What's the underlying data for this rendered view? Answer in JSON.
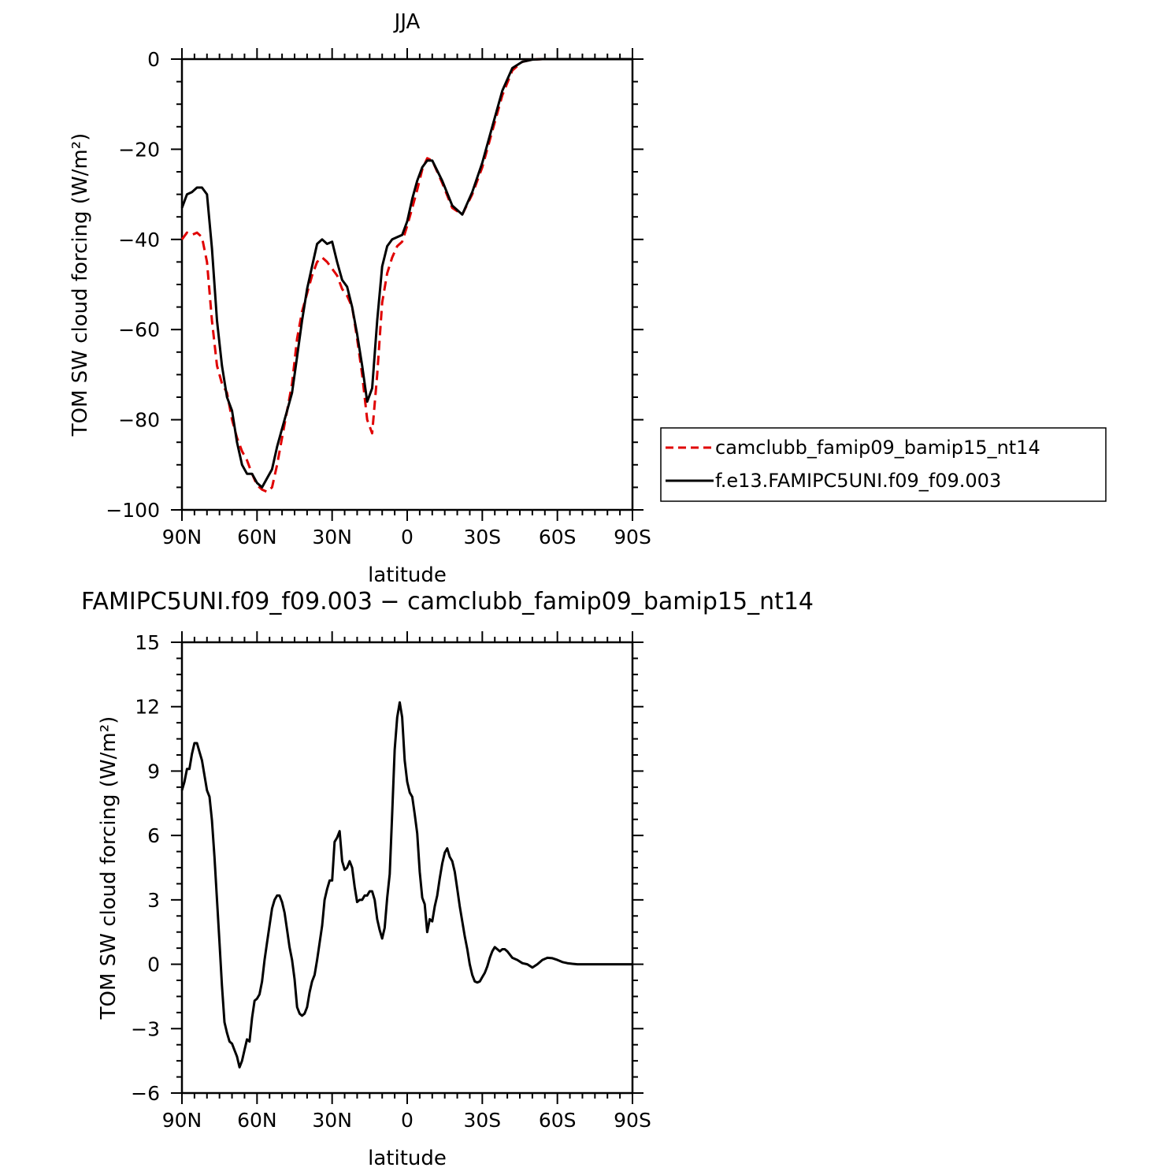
{
  "chart_data": [
    {
      "type": "line",
      "title": "JJA",
      "xlabel": "latitude",
      "ylabel": "TOM SW cloud forcing (W/m²)",
      "xlim": [
        90,
        -90
      ],
      "ylim": [
        -100,
        0
      ],
      "xticks": [
        {
          "v": 90,
          "label": "90N"
        },
        {
          "v": 60,
          "label": "60N"
        },
        {
          "v": 30,
          "label": "30N"
        },
        {
          "v": 0,
          "label": "0"
        },
        {
          "v": -30,
          "label": "30S"
        },
        {
          "v": -60,
          "label": "60S"
        },
        {
          "v": -90,
          "label": "90S"
        }
      ],
      "yticks": [
        {
          "v": 0,
          "label": "0"
        },
        {
          "v": -20,
          "label": "−20"
        },
        {
          "v": -40,
          "label": "−40"
        },
        {
          "v": -60,
          "label": "−60"
        },
        {
          "v": -80,
          "label": "−80"
        },
        {
          "v": -100,
          "label": "−100"
        }
      ],
      "legend_position": "right",
      "series": [
        {
          "name": "camclubb_famip09_bamip15_nt14",
          "color": "#e00000",
          "dash": true,
          "x": [
            90,
            88,
            86,
            84,
            82,
            80,
            78,
            76,
            74,
            72,
            70,
            68,
            66,
            64,
            62,
            60,
            58,
            56,
            54,
            52,
            50,
            48,
            46,
            44,
            42,
            40,
            38,
            36,
            34,
            32,
            30,
            28,
            26,
            24,
            22,
            20,
            18,
            16,
            14,
            12,
            10,
            8,
            6,
            4,
            2,
            0,
            -2,
            -4,
            -6,
            -8,
            -10,
            -14,
            -18,
            -22,
            -26,
            -30,
            -34,
            -38,
            -42,
            -46,
            -50,
            -54,
            -58,
            -62,
            -64,
            -66,
            -68,
            -70,
            -75,
            -80,
            -90
          ],
          "y": [
            -40,
            -38.5,
            -39,
            -38.5,
            -39.5,
            -45,
            -58,
            -68,
            -72,
            -74,
            -80,
            -84,
            -87,
            -89,
            -92,
            -94.5,
            -95.5,
            -96,
            -95,
            -90,
            -84,
            -78,
            -72,
            -62,
            -56,
            -52,
            -48,
            -45,
            -44,
            -45,
            -46.5,
            -48,
            -51,
            -52.5,
            -55,
            -62,
            -70,
            -80,
            -83,
            -70,
            -54,
            -47.5,
            -44,
            -41.5,
            -40.5,
            -37,
            -33,
            -29,
            -24.5,
            -22,
            -22.5,
            -27.5,
            -33,
            -34.5,
            -30,
            -24,
            -16,
            -8,
            -2.5,
            -0.6,
            -0.1,
            0,
            0,
            0,
            0,
            0,
            0,
            0,
            0,
            0,
            0
          ]
        },
        {
          "name": "f.e13.FAMIPC5UNI.f09_f09.003",
          "color": "#000000",
          "dash": false,
          "x": [
            90,
            88,
            86,
            84,
            82,
            80,
            78,
            76,
            74,
            72,
            70,
            68,
            66,
            64,
            62,
            60,
            58,
            56,
            54,
            52,
            50,
            48,
            46,
            44,
            42,
            40,
            38,
            36,
            34,
            32,
            30,
            28,
            26,
            24,
            22,
            20,
            18,
            16,
            14,
            12,
            10,
            8,
            6,
            4,
            2,
            0,
            -2,
            -4,
            -6,
            -8,
            -10,
            -14,
            -18,
            -22,
            -26,
            -30,
            -34,
            -38,
            -42,
            -46,
            -50,
            -54,
            -58,
            -62,
            -64,
            -66,
            -68,
            -70,
            -75,
            -80,
            -90
          ],
          "y": [
            -33,
            -30,
            -29.5,
            -28.5,
            -28.5,
            -30,
            -42,
            -58,
            -68,
            -75,
            -78,
            -85,
            -90,
            -92,
            -92,
            -94,
            -95,
            -93,
            -91,
            -86,
            -82,
            -78,
            -74,
            -66,
            -58,
            -51,
            -46,
            -41,
            -40,
            -41,
            -40.5,
            -45,
            -49,
            -50.5,
            -55,
            -61,
            -68,
            -76,
            -73,
            -58,
            -46,
            -41.5,
            -40,
            -39.5,
            -39,
            -36,
            -31,
            -27,
            -24,
            -22.5,
            -22.5,
            -27,
            -32.5,
            -34.5,
            -29.5,
            -23,
            -15,
            -7,
            -2,
            -0.6,
            -0.1,
            0,
            0,
            0,
            0,
            0,
            0,
            0,
            0,
            0,
            0
          ]
        }
      ]
    },
    {
      "type": "line",
      "title": "FAMIPC5UNI.f09_f09.003 − camclubb_famip09_bamip15_nt14",
      "xlabel": "latitude",
      "ylabel": "TOM SW cloud forcing (W/m²)",
      "xlim": [
        90,
        -90
      ],
      "ylim": [
        -6,
        15
      ],
      "xticks": [
        {
          "v": 90,
          "label": "90N"
        },
        {
          "v": 60,
          "label": "60N"
        },
        {
          "v": 30,
          "label": "30N"
        },
        {
          "v": 0,
          "label": "0"
        },
        {
          "v": -30,
          "label": "30S"
        },
        {
          "v": -60,
          "label": "60S"
        },
        {
          "v": -90,
          "label": "90S"
        }
      ],
      "yticks": [
        {
          "v": 15,
          "label": "15"
        },
        {
          "v": 12,
          "label": "12"
        },
        {
          "v": 9,
          "label": "9"
        },
        {
          "v": 6,
          "label": "6"
        },
        {
          "v": 3,
          "label": "3"
        },
        {
          "v": 0,
          "label": "0"
        },
        {
          "v": -3,
          "label": "−3"
        },
        {
          "v": -6,
          "label": "−6"
        }
      ],
      "series": [
        {
          "color": "#000000",
          "dash": false,
          "x": [
            90,
            89,
            88,
            87,
            86,
            85,
            84,
            83,
            82,
            81,
            80,
            79,
            78,
            77,
            76,
            75,
            74,
            73,
            72,
            71,
            70,
            69,
            68,
            67,
            66,
            65,
            64,
            63,
            62,
            61,
            60,
            59,
            58,
            57,
            56,
            55,
            54,
            53,
            52,
            51,
            50,
            49,
            48,
            47,
            46,
            45,
            44,
            43,
            42,
            41,
            40,
            39,
            38,
            37,
            36,
            35,
            34,
            33,
            32,
            31,
            30,
            29,
            28,
            27,
            26,
            25,
            24,
            23,
            22,
            21,
            20,
            19,
            18,
            17,
            16,
            15,
            14,
            13,
            12,
            11,
            10,
            9,
            8,
            7,
            6,
            5,
            4,
            3,
            2,
            1,
            0,
            -1,
            -2,
            -3,
            -4,
            -5,
            -6,
            -7,
            -8,
            -9,
            -10,
            -11,
            -12,
            -13,
            -14,
            -15,
            -16,
            -17,
            -18,
            -19,
            -20,
            -21,
            -22,
            -23,
            -24,
            -25,
            -26,
            -27,
            -28,
            -29,
            -30,
            -31,
            -32,
            -33,
            -34,
            -35,
            -36,
            -37,
            -38,
            -39,
            -40,
            -42,
            -44,
            -46,
            -48,
            -50,
            -52,
            -54,
            -56,
            -58,
            -60,
            -62,
            -64,
            -66,
            -68,
            -70,
            -75,
            -80,
            -90
          ],
          "y": [
            8.1,
            8.5,
            9.1,
            9.1,
            9.8,
            10.3,
            10.3,
            9.9,
            9.5,
            8.8,
            8.1,
            7.8,
            6.7,
            5.0,
            3.0,
            1.0,
            -1.0,
            -2.7,
            -3.2,
            -3.6,
            -3.7,
            -4.0,
            -4.3,
            -4.8,
            -4.5,
            -4.0,
            -3.5,
            -3.6,
            -2.5,
            -1.7,
            -1.6,
            -1.4,
            -0.8,
            0.2,
            1.0,
            1.8,
            2.6,
            3.0,
            3.2,
            3.2,
            2.9,
            2.4,
            1.6,
            0.8,
            0.2,
            -0.7,
            -2.0,
            -2.3,
            -2.4,
            -2.3,
            -2.0,
            -1.3,
            -0.8,
            -0.5,
            0.2,
            1.0,
            1.8,
            3.0,
            3.5,
            3.9,
            3.9,
            5.7,
            5.9,
            6.2,
            4.8,
            4.4,
            4.5,
            4.8,
            4.5,
            3.6,
            2.9,
            3.0,
            3.0,
            3.2,
            3.2,
            3.4,
            3.4,
            3.0,
            2.1,
            1.6,
            1.2,
            1.7,
            3.1,
            4.2,
            7.0,
            10.0,
            11.5,
            12.2,
            11.5,
            9.5,
            8.5,
            8.0,
            7.8,
            7.0,
            6.1,
            4.3,
            3.1,
            2.8,
            1.5,
            2.1,
            2.0,
            2.7,
            3.2,
            4.0,
            4.7,
            5.2,
            5.4,
            5.0,
            4.8,
            4.3,
            3.5,
            2.7,
            2.0,
            1.3,
            0.7,
            0.0,
            -0.5,
            -0.8,
            -0.85,
            -0.8,
            -0.6,
            -0.4,
            -0.1,
            0.3,
            0.6,
            0.8,
            0.7,
            0.6,
            0.7,
            0.7,
            0.6,
            0.3,
            0.2,
            0.05,
            0.0,
            -0.15,
            0.0,
            0.2,
            0.3,
            0.28,
            0.2,
            0.1,
            0.05,
            0.02,
            0.0,
            0.0,
            0.0,
            0.0,
            0.0
          ]
        }
      ]
    }
  ]
}
